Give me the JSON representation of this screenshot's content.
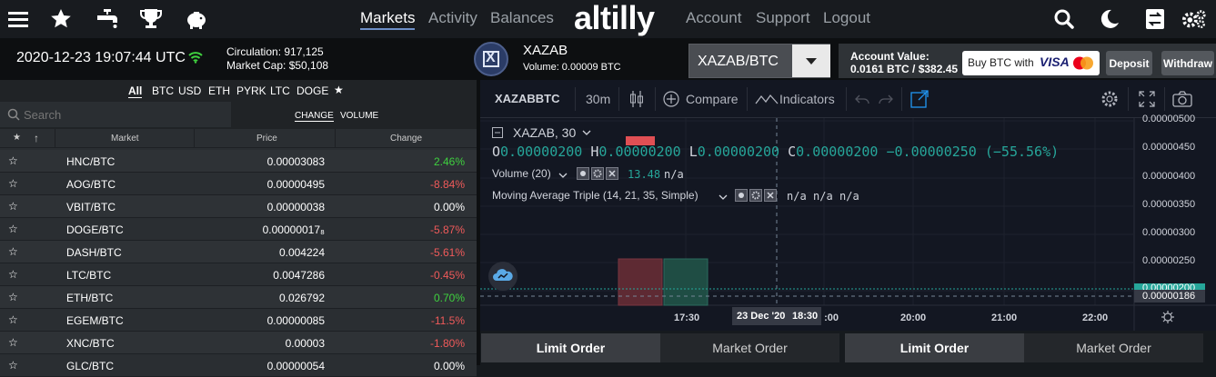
{
  "nav": {
    "links": {
      "markets": "Markets",
      "activity": "Activity",
      "balances": "Balances",
      "account": "Account",
      "support": "Support",
      "logout": "Logout"
    },
    "logo": "altilly",
    "icons": [
      "menu-icon",
      "star-icon",
      "faucet-icon",
      "trophy-icon",
      "piggy-bank-icon",
      "search-icon",
      "moon-icon",
      "exchange-icon",
      "settings-icon"
    ]
  },
  "info": {
    "datetime": "2020-12-23 19:07:44 UTC",
    "circulation": "Circulation: 917,125",
    "market_cap": "Market Cap: $50,108",
    "coin_name": "XAZAB",
    "coin_volume": "Volume: 0.00009 BTC",
    "pair_select": "XAZAB/BTC",
    "account_value_label": "Account Value:",
    "account_value": "0.0161 BTC / $382.45",
    "buy_btc": "Buy BTC with",
    "visa": "VISA",
    "deposit": "Deposit",
    "withdraw": "Withdraw"
  },
  "market": {
    "filters": [
      "All",
      "BTC",
      "USD",
      "ETH",
      "PYRK",
      "LTC",
      "DOGE",
      "★"
    ],
    "search_placeholder": "Search",
    "toggle_change": "CHANGE",
    "toggle_volume": "VOLUME",
    "headers": {
      "star": "★",
      "sort": "↑",
      "market": "Market",
      "price": "Price",
      "change": "Change"
    },
    "rows": [
      {
        "star": "☆",
        "market": "HNC/BTC",
        "price": "0.00003083",
        "change": "2.46%"
      },
      {
        "star": "☆",
        "market": "AOG/BTC",
        "price": "0.00000495",
        "change": "-8.84%"
      },
      {
        "star": "☆",
        "market": "VBIT/BTC",
        "price": "0.00000038",
        "change": "0.00%"
      },
      {
        "star": "☆",
        "market": "DOGE/BTC",
        "price": "0.00000017₈",
        "change": "-5.87%"
      },
      {
        "star": "☆",
        "market": "DASH/BTC",
        "price": "0.004224",
        "change": "-5.61%"
      },
      {
        "star": "☆",
        "market": "LTC/BTC",
        "price": "0.0047286",
        "change": "-0.45%"
      },
      {
        "star": "☆",
        "market": "ETH/BTC",
        "price": "0.026792",
        "change": "0.70%"
      },
      {
        "star": "☆",
        "market": "EGEM/BTC",
        "price": "0.00000085",
        "change": "-11.5%"
      },
      {
        "star": "☆",
        "market": "XNC/BTC",
        "price": "0.00003",
        "change": "-1.80%"
      },
      {
        "star": "☆",
        "market": "GLC/BTC",
        "price": "0.00000054",
        "change": "0.00%"
      }
    ],
    "colors": {
      "positive": "#3fd13f",
      "negative": "#f05a5a",
      "neutral": "#ffffff"
    }
  },
  "chart": {
    "symbol": "XAZABBTC",
    "interval": "30m",
    "compare": "Compare",
    "indicators": "Indicators",
    "legend_title": "XAZAB, 30",
    "ohlc": {
      "o_label": "O",
      "o": "0.00000200",
      "h_label": "H",
      "h": "0.00000200",
      "l_label": "L",
      "l": "0.00000200",
      "c_label": "C",
      "c": "0.00000200",
      "chg": "−0.00000250 (−55.56%)"
    },
    "volume_label": "Volume (20)",
    "volume_value": "13.48",
    "volume_na": "n/a",
    "ma_label": "Moving Average Triple (14, 21, 35, Simple)",
    "ma_na": [
      "n/a",
      "n/a",
      "n/a"
    ],
    "price_axis": [
      "0.00000500",
      "0.00000450",
      "0.00000400",
      "0.00000350",
      "0.00000300",
      "0.00000250",
      "0.00000200",
      "0.00000186"
    ],
    "time_axis": [
      "17:30",
      "19:00",
      "20:00",
      "21:00",
      "22:00"
    ],
    "crosshair_date": "23 Dec '20",
    "crosshair_time": "18:30"
  },
  "orders": {
    "left": {
      "limit": "Limit Order",
      "market": "Market Order"
    },
    "right": {
      "limit": "Limit Order",
      "market": "Market Order"
    }
  }
}
